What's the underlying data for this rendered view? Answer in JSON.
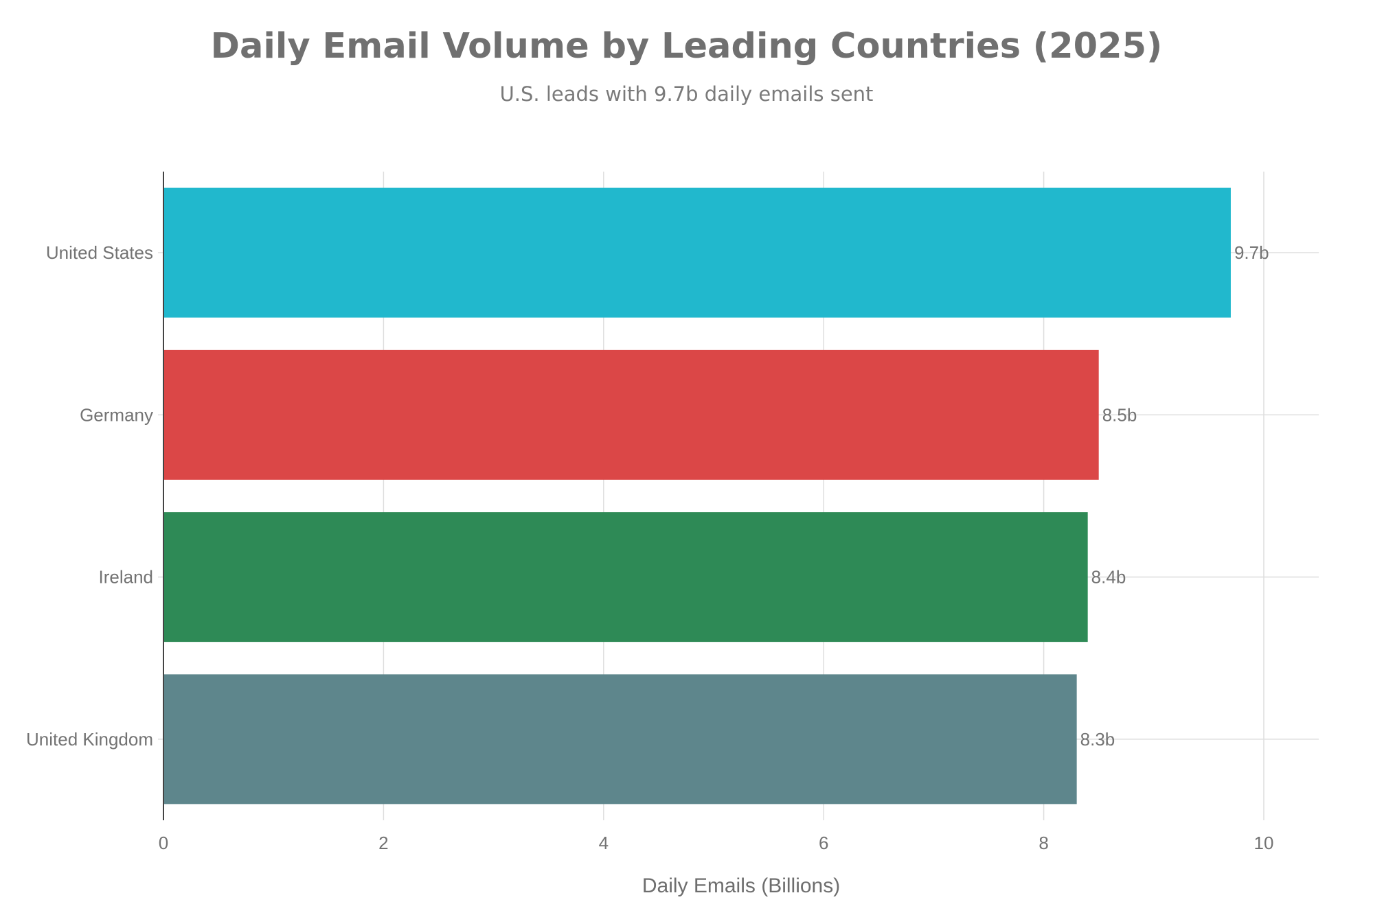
{
  "chart_data": {
    "type": "bar",
    "orientation": "horizontal",
    "title": "Daily Email Volume by Leading Countries (2025)",
    "subtitle": "U.S. leads with 9.7b daily emails sent",
    "xlabel": "Daily Emails (Billions)",
    "ylabel": "",
    "xlim": [
      0,
      10.5
    ],
    "xticks": [
      0,
      2,
      4,
      6,
      8,
      10
    ],
    "grid": true,
    "legend": "none",
    "categories": [
      "United States",
      "Germany",
      "Ireland",
      "United Kingdom"
    ],
    "values": [
      9.7,
      8.5,
      8.4,
      8.3
    ],
    "data_labels": [
      "9.7b",
      "8.5b",
      "8.4b",
      "8.3b"
    ],
    "colors": [
      "#21b8cd",
      "#db4747",
      "#2e8a56",
      "#5e868c"
    ]
  }
}
